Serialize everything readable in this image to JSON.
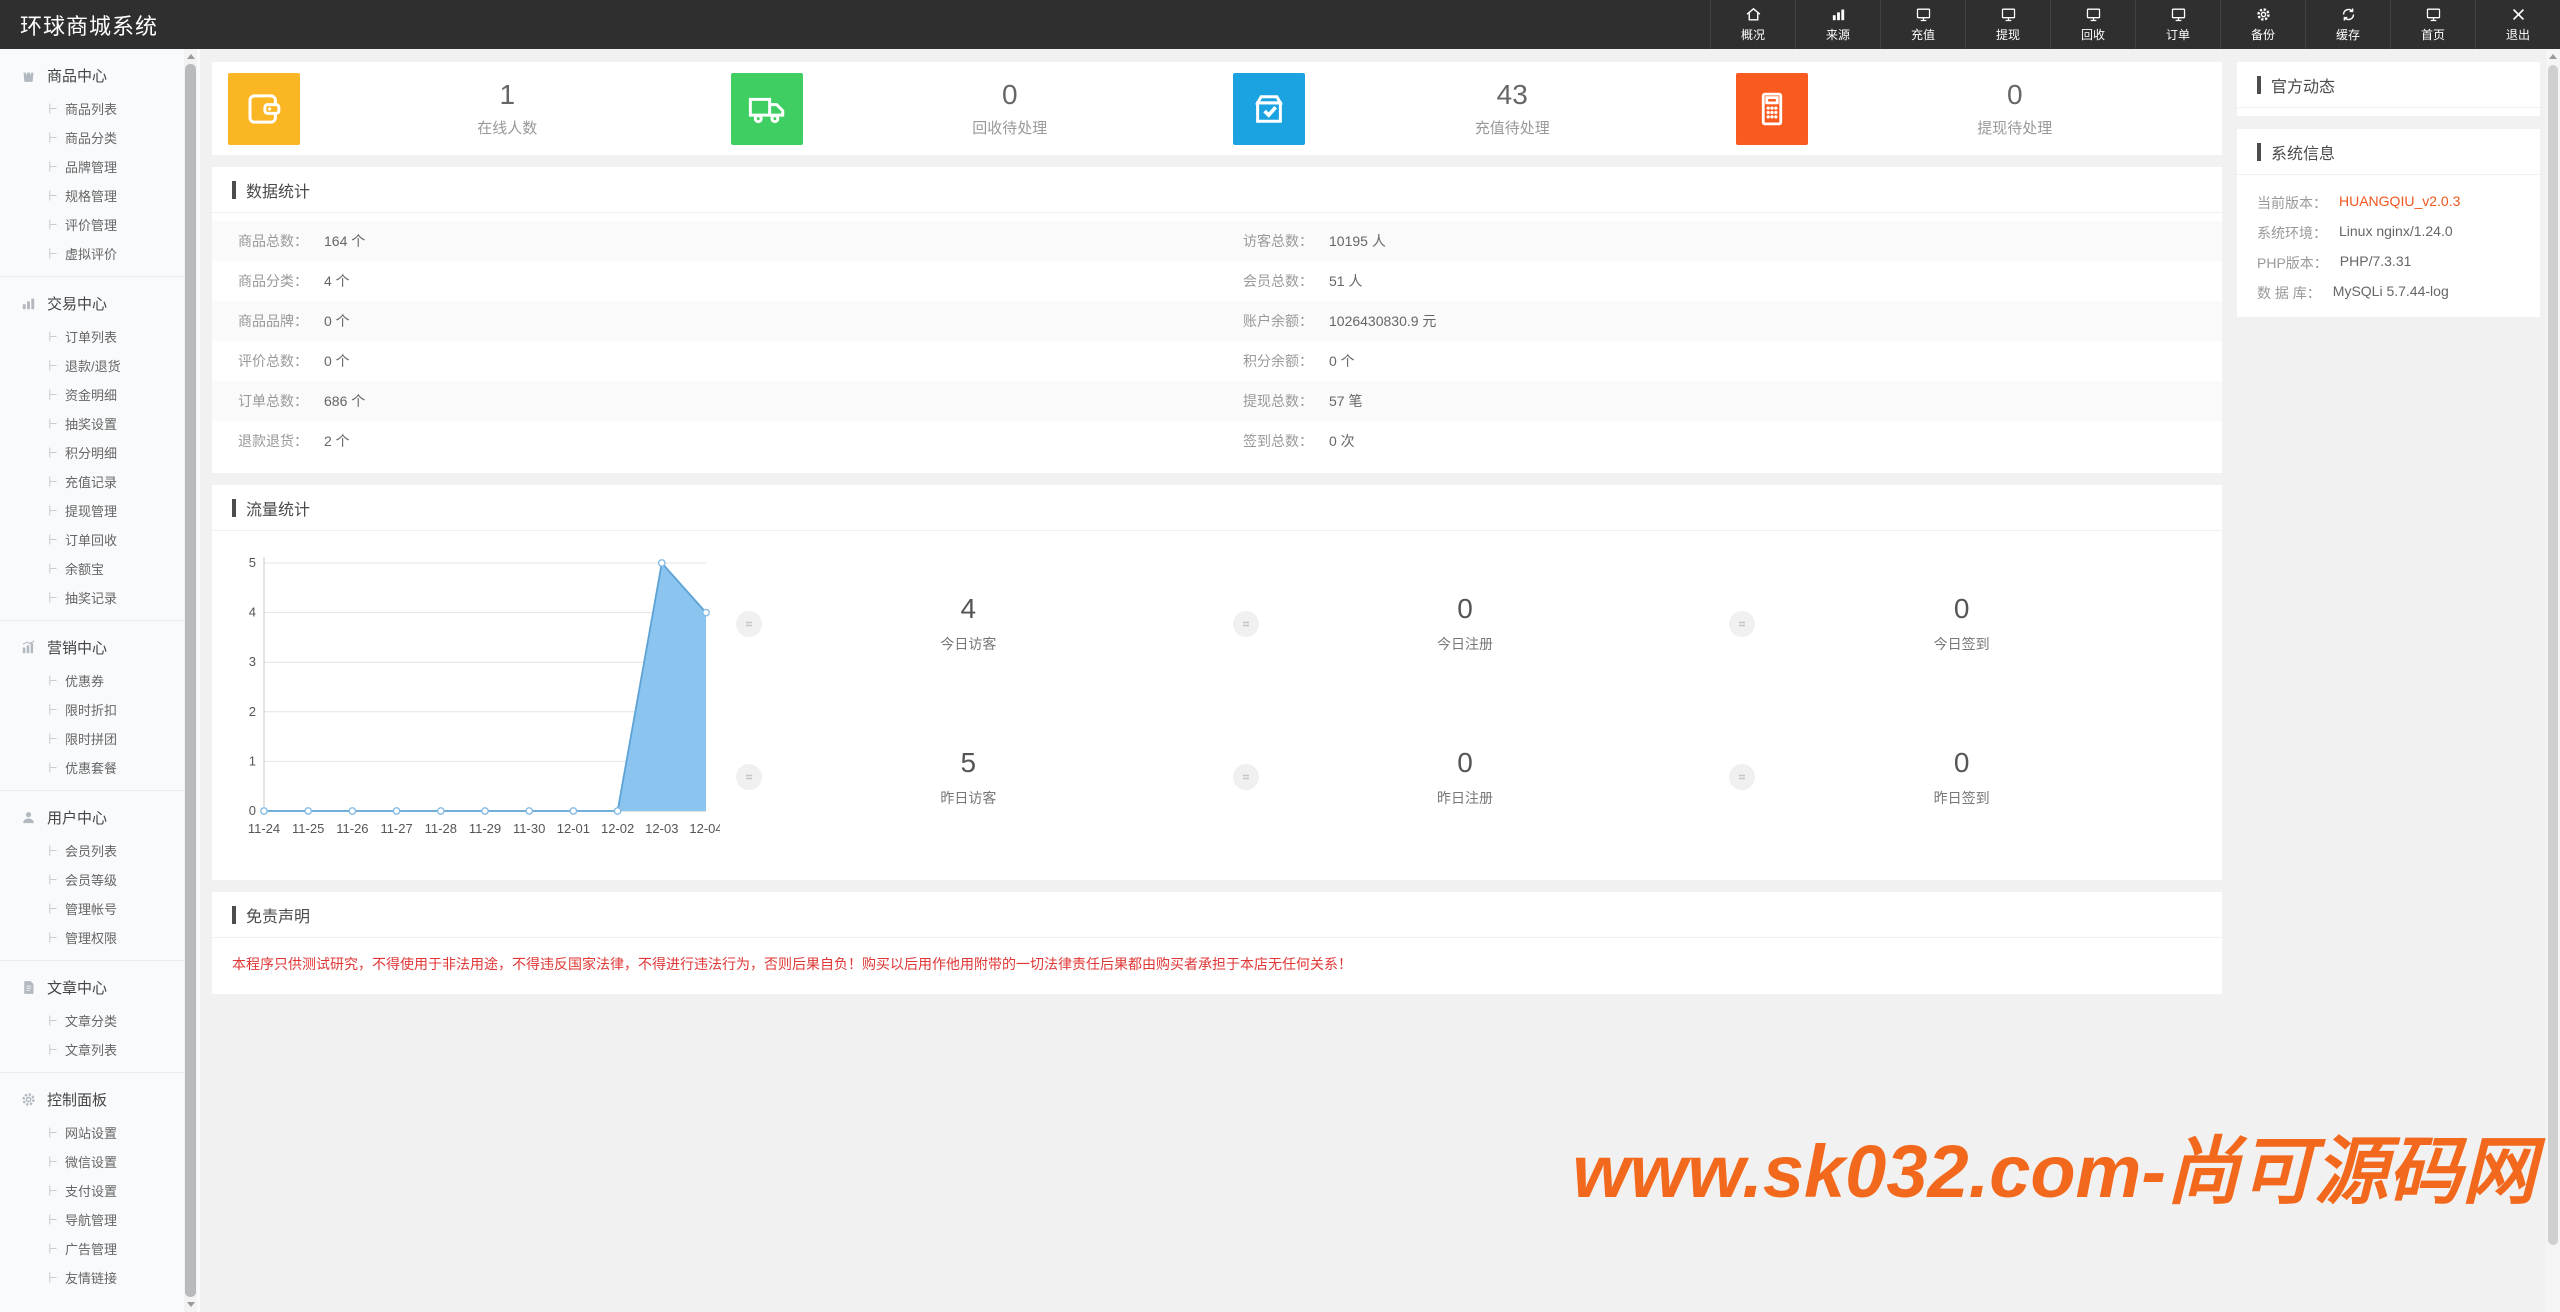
{
  "app": {
    "title": "环球商城系统"
  },
  "header": {
    "nav": [
      {
        "label": "概况",
        "icon": "home-icon"
      },
      {
        "label": "来源",
        "icon": "bar-chart-icon"
      },
      {
        "label": "充值",
        "icon": "monitor-icon"
      },
      {
        "label": "提现",
        "icon": "monitor-icon"
      },
      {
        "label": "回收",
        "icon": "monitor-icon"
      },
      {
        "label": "订单",
        "icon": "monitor-icon"
      },
      {
        "label": "备份",
        "icon": "gear-icon"
      },
      {
        "label": "缓存",
        "icon": "refresh-icon"
      },
      {
        "label": "首页",
        "icon": "monitor-icon"
      },
      {
        "label": "退出",
        "icon": "close-icon"
      }
    ]
  },
  "sidebar": {
    "sections": [
      {
        "title": "商品中心",
        "icon": "shopping-bag-icon",
        "items": [
          "商品列表",
          "商品分类",
          "品牌管理",
          "规格管理",
          "评价管理",
          "虚拟评价"
        ]
      },
      {
        "title": "交易中心",
        "icon": "bar-chart-icon",
        "items": [
          "订单列表",
          "退款/退货",
          "资金明细",
          "抽奖设置",
          "积分明细",
          "充值记录",
          "提现管理",
          "订单回收",
          "余额宝",
          "抽奖记录"
        ]
      },
      {
        "title": "营销中心",
        "icon": "trend-chart-icon",
        "items": [
          "优惠券",
          "限时折扣",
          "限时拼团",
          "优惠套餐"
        ]
      },
      {
        "title": "用户中心",
        "icon": "user-icon",
        "items": [
          "会员列表",
          "会员等级",
          "管理帐号",
          "管理权限"
        ]
      },
      {
        "title": "文章中心",
        "icon": "document-icon",
        "items": [
          "文章分类",
          "文章列表"
        ]
      },
      {
        "title": "控制面板",
        "icon": "gear-icon",
        "items": [
          "网站设置",
          "微信设置",
          "支付设置",
          "导航管理",
          "广告管理",
          "友情链接"
        ]
      }
    ]
  },
  "overview_cards": [
    {
      "value": "1",
      "label": "在线人数",
      "icon": "wallet-icon",
      "color": "#fbb624"
    },
    {
      "value": "0",
      "label": "回收待处理",
      "icon": "truck-icon",
      "color": "#3fce61"
    },
    {
      "value": "43",
      "label": "充值待处理",
      "icon": "box-check-icon",
      "color": "#1ba2e1"
    },
    {
      "value": "0",
      "label": "提现待处理",
      "icon": "calculator-icon",
      "color": "#f95a1f"
    }
  ],
  "data_stats": {
    "title": "数据统计",
    "left": [
      {
        "label": "商品总数：",
        "value": "164 个"
      },
      {
        "label": "商品分类：",
        "value": "4 个"
      },
      {
        "label": "商品品牌：",
        "value": "0 个"
      },
      {
        "label": "评价总数：",
        "value": "0 个"
      },
      {
        "label": "订单总数：",
        "value": "686 个"
      },
      {
        "label": "退款退货：",
        "value": "2 个"
      }
    ],
    "right": [
      {
        "label": "访客总数：",
        "value": "10195 人"
      },
      {
        "label": "会员总数：",
        "value": "51 人"
      },
      {
        "label": "账户余额：",
        "value": "1026430830.9 元"
      },
      {
        "label": "积分余额：",
        "value": "0 个"
      },
      {
        "label": "提现总数：",
        "value": "57 笔"
      },
      {
        "label": "签到总数：",
        "value": "0 次"
      }
    ]
  },
  "traffic": {
    "title": "流量统计",
    "stats": [
      {
        "value": "4",
        "label": "今日访客"
      },
      {
        "value": "0",
        "label": "今日注册"
      },
      {
        "value": "0",
        "label": "今日签到"
      },
      {
        "value": "5",
        "label": "昨日访客"
      },
      {
        "value": "0",
        "label": "昨日注册"
      },
      {
        "value": "0",
        "label": "昨日签到"
      }
    ]
  },
  "chart_data": {
    "type": "area",
    "title": "流量统计",
    "x": [
      "11-24",
      "11-25",
      "11-26",
      "11-27",
      "11-28",
      "11-29",
      "11-30",
      "12-01",
      "12-02",
      "12-03",
      "12-04"
    ],
    "values": [
      0,
      0,
      0,
      0,
      0,
      0,
      0,
      0,
      0,
      5,
      4
    ],
    "xlabel": "",
    "ylabel": "",
    "ylim": [
      0,
      5
    ],
    "yticks": [
      0,
      1,
      2,
      3,
      4,
      5
    ],
    "grid": true,
    "fill_color": "#8ac4ef",
    "line_color": "#5da3d6",
    "marker_color": "#85bbe5"
  },
  "disclaimer": {
    "title": "免责声明",
    "text": "本程序只供测试研究，不得使用于非法用途，不得违反国家法律，不得进行违法行为，否则后果自负！购买以后用作他用附带的一切法律责任后果都由购买者承担于本店无任何关系！",
    "text_color": "#e03636"
  },
  "right_panel": {
    "official": {
      "title": "官方动态"
    },
    "system": {
      "title": "系统信息",
      "rows": [
        {
          "label": "当前版本：",
          "value": "HUANGQIU_v2.0.3",
          "highlight": true
        },
        {
          "label": "系统环境：",
          "value": "Linux nginx/1.24.0"
        },
        {
          "label": "PHP版本：",
          "value": "PHP/7.3.31"
        },
        {
          "label": "数 据 库：",
          "value": "MySQLi 5.7.44-log"
        }
      ]
    }
  },
  "watermark": {
    "text": "www.sk032.com-尚可源码网",
    "color": "#f2691d"
  }
}
